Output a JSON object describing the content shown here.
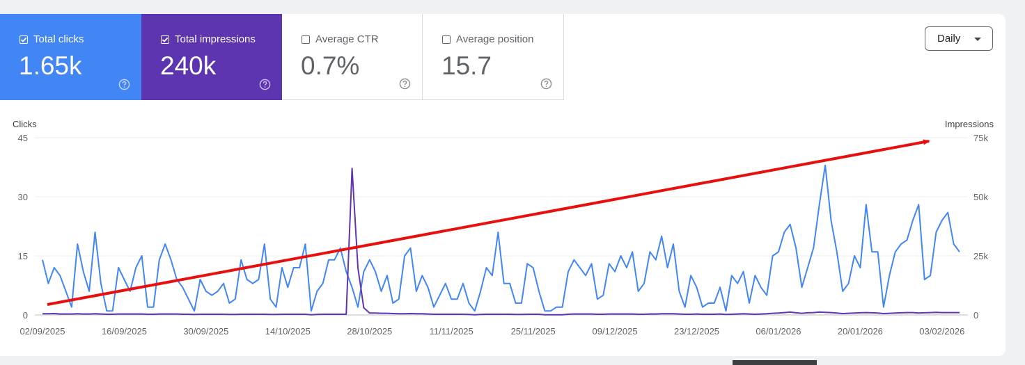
{
  "metrics": {
    "clicks": {
      "label": "Total clicks",
      "value": "1.65k",
      "checked": true,
      "color": "#4285f4"
    },
    "impressions": {
      "label": "Total impressions",
      "value": "240k",
      "checked": true,
      "color": "#5e35b1"
    },
    "ctr": {
      "label": "Average CTR",
      "value": "0.7%",
      "checked": false
    },
    "position": {
      "label": "Average position",
      "value": "15.7",
      "checked": false
    }
  },
  "icons": {
    "help": "help-circle-icon",
    "dropdown": "caret-down-icon",
    "annotation": "red-arrow-annotation"
  },
  "granularity": {
    "selected": "Daily"
  },
  "chart_data": {
    "type": "line",
    "left_axis": {
      "label": "Clicks",
      "ticks": [
        "0",
        "15",
        "30",
        "45"
      ],
      "range": [
        0,
        45
      ]
    },
    "right_axis": {
      "label": "Impressions",
      "ticks": [
        "0",
        "25k",
        "50k",
        "75k"
      ],
      "range": [
        0,
        75000
      ]
    },
    "x_tick_labels": [
      "02/09/2025",
      "16/09/2025",
      "30/09/2025",
      "14/10/2025",
      "28/10/2025",
      "11/11/2025",
      "25/11/2025",
      "09/12/2025",
      "23/12/2025",
      "06/01/2026",
      "20/01/2026",
      "03/02/2026"
    ],
    "x_start": "2025-09-02",
    "grid": true,
    "series": [
      {
        "name": "Total clicks",
        "axis": "left",
        "color": "#4285f4",
        "values": [
          14,
          8,
          12,
          10,
          6,
          2,
          18,
          11,
          6,
          21,
          8,
          1,
          1,
          12,
          9,
          6,
          12,
          15,
          2,
          2,
          14,
          18,
          14,
          9,
          7,
          4,
          1,
          9,
          6,
          5,
          6,
          8,
          3,
          4,
          14,
          9,
          8,
          9,
          18,
          4,
          2,
          12,
          7,
          12,
          12,
          18,
          1,
          6,
          8,
          14,
          14,
          17,
          11,
          7,
          2,
          11,
          14,
          11,
          6,
          10,
          3,
          4,
          15,
          17,
          6,
          10,
          7,
          2,
          5,
          8,
          4,
          4,
          8,
          3,
          1,
          6,
          12,
          10,
          21,
          8,
          8,
          3,
          3,
          13,
          12,
          6,
          1,
          1,
          2,
          2,
          11,
          14,
          12,
          10,
          13,
          4,
          5,
          13,
          11,
          15,
          12,
          16,
          6,
          8,
          16,
          14,
          20,
          12,
          18,
          6,
          2,
          10,
          7,
          2,
          3,
          3,
          7,
          1,
          10,
          8,
          11,
          3,
          10,
          7,
          5,
          15,
          16,
          21,
          23,
          17,
          7,
          12,
          17,
          28,
          38,
          24,
          16,
          6,
          8,
          15,
          12,
          28,
          16,
          16,
          2,
          10,
          16,
          18,
          19,
          24,
          28,
          9,
          10,
          21,
          24,
          26,
          18,
          16
        ]
      },
      {
        "name": "Total impressions",
        "axis": "right",
        "color": "#5e35b1",
        "values": [
          500,
          500,
          600,
          400,
          400,
          400,
          500,
          400,
          400,
          500,
          400,
          300,
          300,
          400,
          400,
          400,
          400,
          400,
          300,
          300,
          400,
          400,
          400,
          400,
          300,
          300,
          200,
          300,
          300,
          300,
          300,
          300,
          200,
          200,
          300,
          300,
          300,
          300,
          300,
          200,
          200,
          300,
          300,
          300,
          300,
          300,
          100,
          200,
          300,
          300,
          300,
          300,
          300,
          62000,
          20000,
          3000,
          800,
          800,
          700,
          700,
          600,
          500,
          500,
          600,
          500,
          500,
          400,
          300,
          300,
          300,
          300,
          300,
          300,
          200,
          100,
          200,
          300,
          300,
          300,
          300,
          300,
          200,
          200,
          300,
          300,
          300,
          100,
          100,
          100,
          100,
          300,
          400,
          400,
          400,
          400,
          300,
          300,
          400,
          400,
          400,
          400,
          400,
          300,
          300,
          400,
          400,
          500,
          500,
          500,
          400,
          300,
          300,
          400,
          300,
          300,
          300,
          400,
          200,
          300,
          400,
          500,
          400,
          300,
          400,
          500,
          700,
          800,
          1000,
          1200,
          900,
          700,
          900,
          1000,
          1200,
          1100,
          1000,
          800,
          600,
          700,
          800,
          900,
          1000,
          900,
          800,
          600,
          700,
          800,
          900,
          1000,
          1000,
          800,
          900,
          1000,
          1100,
          1000,
          1000,
          1000,
          1000
        ]
      }
    ]
  }
}
